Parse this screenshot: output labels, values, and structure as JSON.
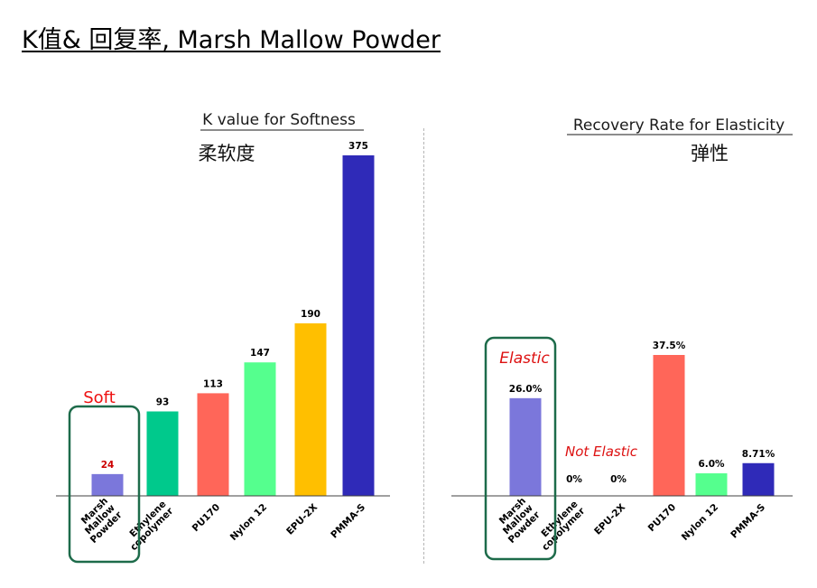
{
  "slide_title": "K值& 回复率, Marsh Mallow Powder",
  "chart_data": [
    {
      "type": "bar",
      "title": "K value for Softness",
      "subtitle": "柔软度",
      "categories": [
        "Marsh Mallow Powder",
        "Ethylene copolymer",
        "PU170",
        "Nylon 12",
        "EPU-2X",
        "PMMA-S"
      ],
      "values": [
        24,
        93,
        113,
        147,
        190,
        375
      ],
      "value_labels": [
        "24",
        "93",
        "113",
        "147",
        "190",
        "375"
      ],
      "colors": [
        "#7b77db",
        "#00c98c",
        "#ff6659",
        "#55ff8e",
        "#ffbf00",
        "#2f2ab8"
      ],
      "label_colors": [
        "#cc0000",
        "#000000",
        "#000000",
        "#000000",
        "#000000",
        "#000000"
      ],
      "ylim": [
        0,
        375
      ],
      "grid": false,
      "highlight_index": 0,
      "annotations": [
        {
          "text": "Soft",
          "color": "#ee1111"
        }
      ]
    },
    {
      "type": "bar",
      "title": "Recovery Rate for Elasticity",
      "subtitle": "弹性",
      "categories": [
        "Marsh Mallow Powder",
        "Ethylene copolymer",
        "EPU-2X",
        "PU170",
        "Nylon 12",
        "PMMA-S"
      ],
      "values": [
        26.0,
        0,
        0,
        37.5,
        6.0,
        8.71
      ],
      "value_labels": [
        "26.0%",
        "0%",
        "0%",
        "37.5%",
        "6.0%",
        "8.71%"
      ],
      "colors": [
        "#7b77db",
        "#00c98c",
        "#ffbf00",
        "#ff6659",
        "#55ff8e",
        "#2f2ab8"
      ],
      "label_colors": [
        "#000000",
        "#000000",
        "#000000",
        "#000000",
        "#000000",
        "#000000"
      ],
      "ylim": [
        0,
        37.5
      ],
      "grid": false,
      "highlight_index": 0,
      "annotations": [
        {
          "text": "Elastic",
          "color": "#dd1111"
        },
        {
          "text": "Not Elastic",
          "color": "#dd1111"
        }
      ]
    }
  ]
}
